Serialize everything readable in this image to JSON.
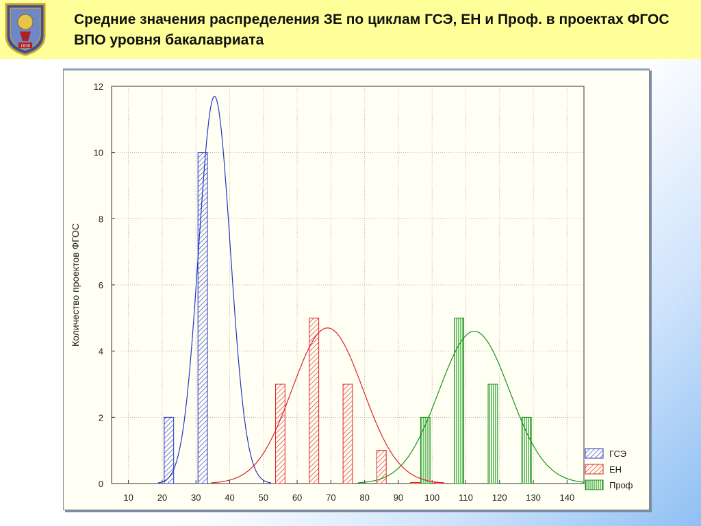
{
  "header": {
    "title": "Средние значения распределения ЗЕ по циклам ГСЭ, ЕН и Проф. в проектах ФГОС ВПО уровня бакалавриата",
    "logo_icon": "university-crest-icon",
    "logo_year": "1830"
  },
  "colors": {
    "header_bg": "#ffff99",
    "gse": "#2233cc",
    "en": "#e02020",
    "prof": "#129412"
  },
  "chart_data": {
    "type": "bar",
    "title": "",
    "xlabel": "",
    "ylabel": "Количество проектов ФГОС",
    "xlim": [
      5,
      145
    ],
    "ylim": [
      0,
      12
    ],
    "x_ticks": [
      10,
      20,
      30,
      40,
      50,
      60,
      70,
      80,
      90,
      100,
      110,
      120,
      130,
      140
    ],
    "y_ticks": [
      0,
      2,
      4,
      6,
      8,
      10,
      12
    ],
    "grid": true,
    "legend": "bottom-right",
    "series": [
      {
        "name": "ГСЭ",
        "color": "#2233cc",
        "hatch": "diagonal",
        "bins": [
          {
            "x": 22,
            "value": 2
          },
          {
            "x": 32,
            "value": 10
          }
        ],
        "curve": {
          "mean": 35.5,
          "peak": 11.7,
          "sd": 4.7
        }
      },
      {
        "name": "ЕН",
        "color": "#e02020",
        "hatch": "diagonal",
        "bins": [
          {
            "x": 55,
            "value": 3
          },
          {
            "x": 65,
            "value": 5
          },
          {
            "x": 75,
            "value": 3
          },
          {
            "x": 85,
            "value": 1
          },
          {
            "x": 95,
            "value": 0
          },
          {
            "x": 102,
            "value": 0
          }
        ],
        "curve": {
          "mean": 69,
          "peak": 4.7,
          "sd": 10.5
        }
      },
      {
        "name": "Проф",
        "color": "#129412",
        "hatch": "vertical",
        "bins": [
          {
            "x": 98,
            "value": 2
          },
          {
            "x": 108,
            "value": 5
          },
          {
            "x": 118,
            "value": 3
          },
          {
            "x": 128,
            "value": 2
          }
        ],
        "curve": {
          "mean": 112.5,
          "peak": 4.6,
          "sd": 10.5
        }
      }
    ]
  }
}
